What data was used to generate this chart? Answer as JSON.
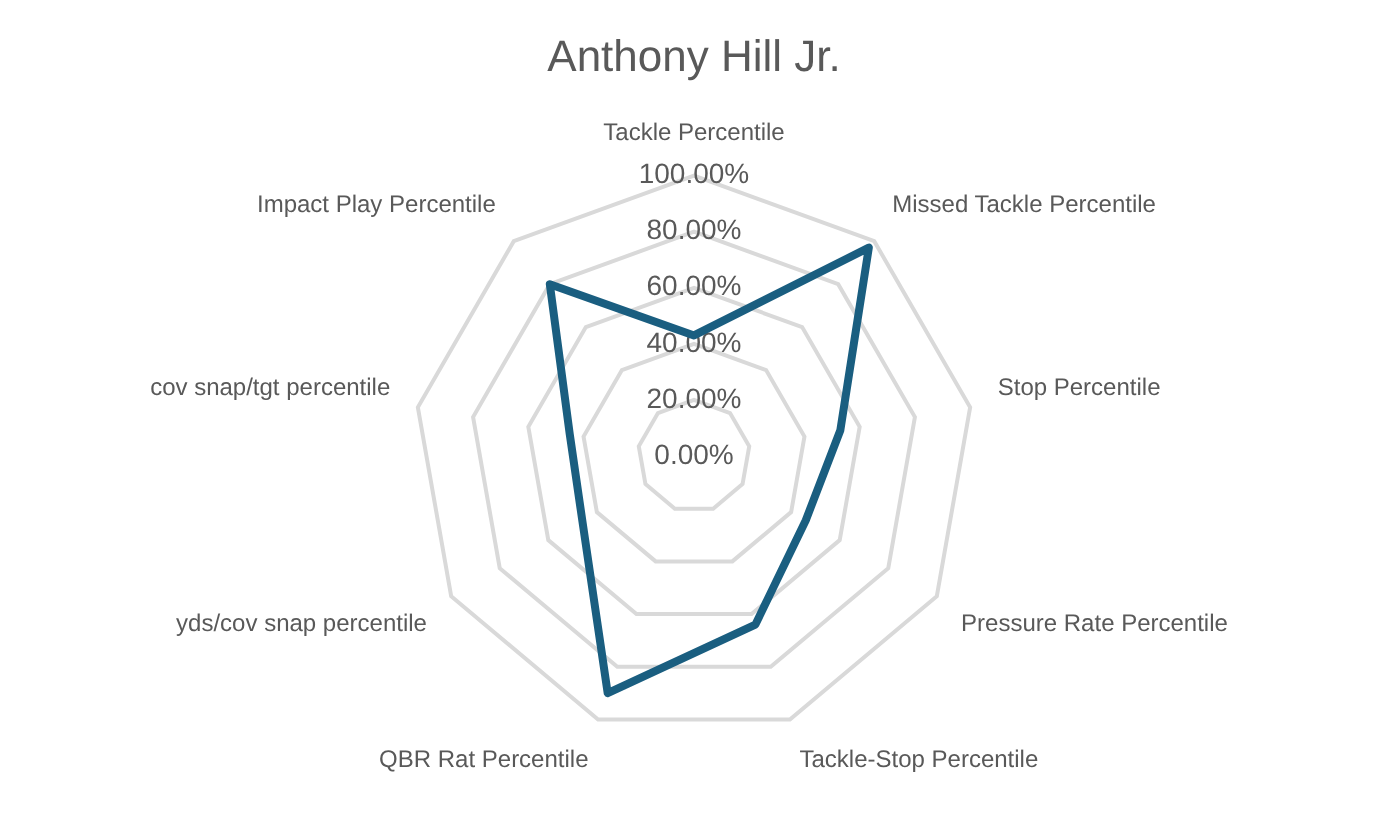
{
  "chart_data": {
    "type": "radar",
    "title": "Anthony Hill Jr.",
    "categories": [
      "Tackle Percentile",
      "Missed Tackle Percentile",
      "Stop Percentile",
      "Pressure Rate Percentile",
      "Tackle-Stop Percentile",
      "QBR Rat Percentile",
      "yds/cov snap percentile",
      "cov snap/tgt percentile",
      "Impact Play Percentile"
    ],
    "series": [
      {
        "color": "#1a5e80",
        "values": [
          43,
          97,
          53,
          46,
          64,
          90,
          46,
          45,
          80
        ]
      }
    ],
    "ylim": [
      0,
      100
    ],
    "yticks": [
      {
        "value": 0,
        "label": "0.00%"
      },
      {
        "value": 20,
        "label": "20.00%"
      },
      {
        "value": 40,
        "label": "40.00%"
      },
      {
        "value": 60,
        "label": "60.00%"
      },
      {
        "value": 80,
        "label": "80.00%"
      },
      {
        "value": 100,
        "label": "100.00%"
      }
    ],
    "grid": true,
    "legend": false,
    "marker": "none"
  }
}
